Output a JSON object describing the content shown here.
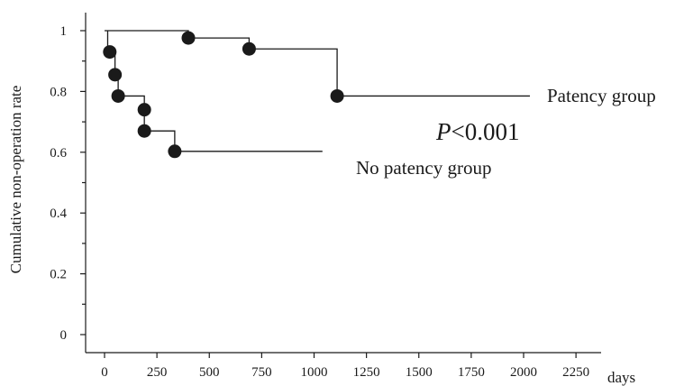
{
  "chart_data": {
    "type": "line",
    "subtype": "kaplan-meier step",
    "title": "",
    "xlabel": "days",
    "ylabel": "Cumulative non-operation rate",
    "xlim": [
      0,
      2250
    ],
    "ylim": [
      0,
      1
    ],
    "xticks": [
      0,
      250,
      500,
      750,
      1000,
      1250,
      1500,
      1750,
      2000,
      2250
    ],
    "xtick_labels": [
      "0",
      "250",
      "500",
      "750",
      "1000",
      "1250",
      "1500",
      "1750",
      "2000",
      "2250"
    ],
    "yticks": [
      0,
      0.2,
      0.4,
      0.6,
      0.8,
      1
    ],
    "ytick_labels": [
      "0",
      "0.2",
      "0.4",
      "0.6",
      "0.8",
      "1"
    ],
    "grid": false,
    "legend": "none",
    "annotation": {
      "prefix": "P",
      "text": "<0.001"
    },
    "series": [
      {
        "name": "Patency group",
        "step_x": [
          0,
          400,
          400,
          690,
          690,
          1110,
          1110,
          2030
        ],
        "step_y": [
          1.0,
          1.0,
          0.976,
          0.976,
          0.94,
          0.94,
          0.785,
          0.785
        ],
        "points": [
          {
            "x": 400,
            "y": 0.976
          },
          {
            "x": 690,
            "y": 0.94
          },
          {
            "x": 1110,
            "y": 0.785
          }
        ]
      },
      {
        "name": "No patency group",
        "step_x": [
          15,
          15,
          50,
          50,
          65,
          65,
          190,
          190,
          335,
          335,
          1040
        ],
        "step_y": [
          1.0,
          0.93,
          0.93,
          0.855,
          0.855,
          0.785,
          0.785,
          0.67,
          0.67,
          0.603,
          0.603
        ],
        "points": [
          {
            "x": 25,
            "y": 0.93
          },
          {
            "x": 50,
            "y": 0.855
          },
          {
            "x": 65,
            "y": 0.785
          },
          {
            "x": 190,
            "y": 0.74
          },
          {
            "x": 190,
            "y": 0.67
          },
          {
            "x": 335,
            "y": 0.603
          }
        ]
      }
    ]
  }
}
